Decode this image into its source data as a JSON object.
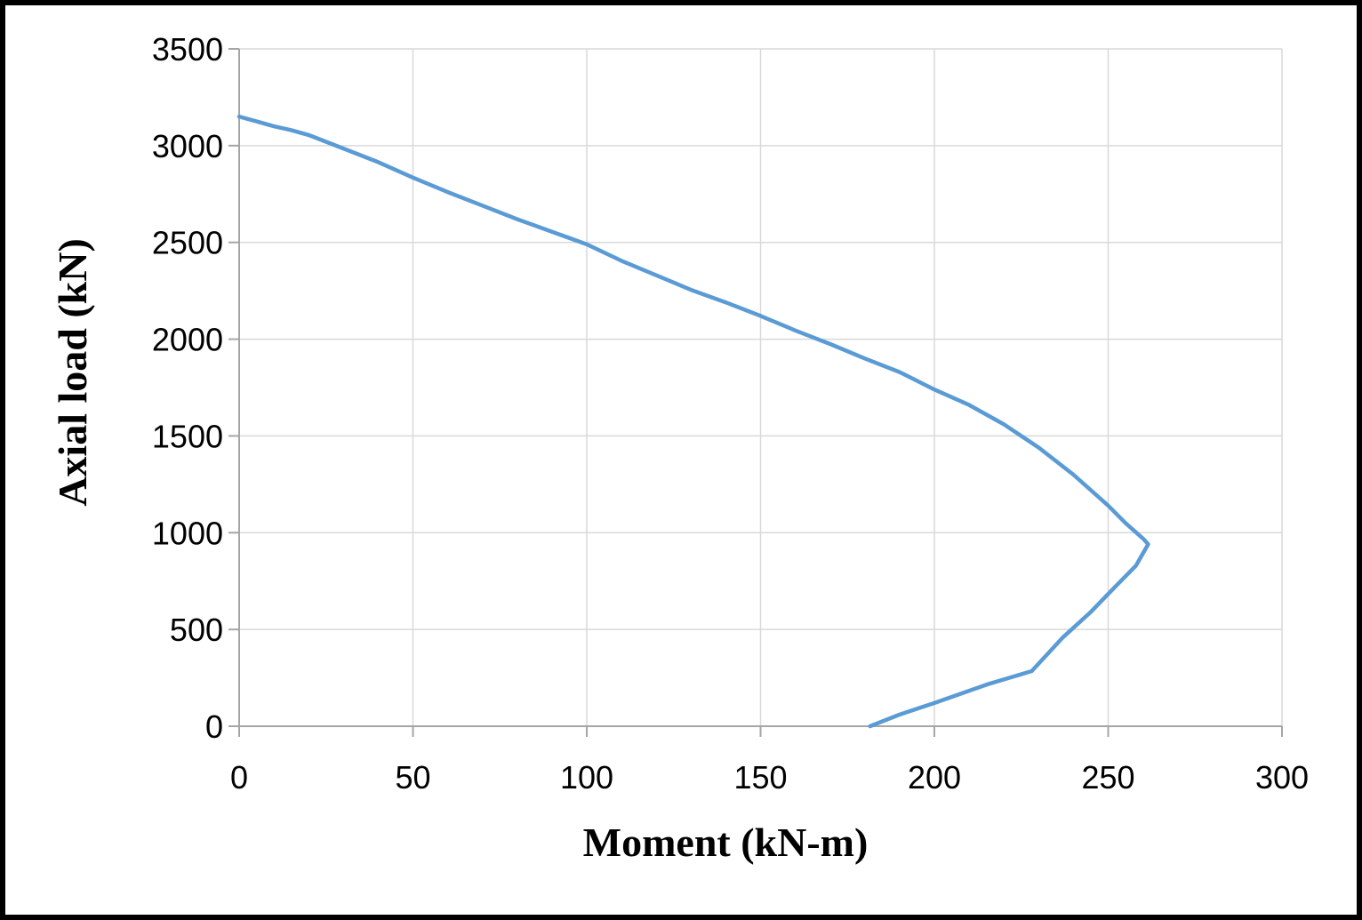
{
  "chart_data": {
    "type": "line",
    "title": "",
    "xlabel": "Moment (kN-m)",
    "ylabel": "Axial load (kN)",
    "xlim": [
      0,
      300
    ],
    "ylim": [
      0,
      3500
    ],
    "xticks": [
      0,
      50,
      100,
      150,
      200,
      250,
      300
    ],
    "yticks": [
      0,
      500,
      1000,
      1500,
      2000,
      2500,
      3000,
      3500
    ],
    "grid": true,
    "legend": "none",
    "series_color": "#5B9BD5",
    "series": [
      {
        "x": [
          0,
          5,
          10,
          15,
          20,
          30,
          40,
          50,
          60,
          70,
          80,
          90,
          100,
          110,
          120,
          130,
          140,
          150,
          160,
          170,
          180,
          190,
          200,
          210,
          220,
          230,
          240,
          250,
          255,
          260,
          261.5,
          258,
          252,
          245,
          237,
          228,
          215,
          200,
          190,
          181.5
        ],
        "y": [
          3150,
          3125,
          3100,
          3080,
          3055,
          2985,
          2915,
          2835,
          2760,
          2690,
          2620,
          2555,
          2490,
          2405,
          2330,
          2255,
          2190,
          2120,
          2045,
          1975,
          1900,
          1830,
          1740,
          1660,
          1560,
          1440,
          1300,
          1140,
          1050,
          970,
          940,
          830,
          720,
          590,
          460,
          285,
          215,
          120,
          60,
          0
        ]
      }
    ]
  }
}
